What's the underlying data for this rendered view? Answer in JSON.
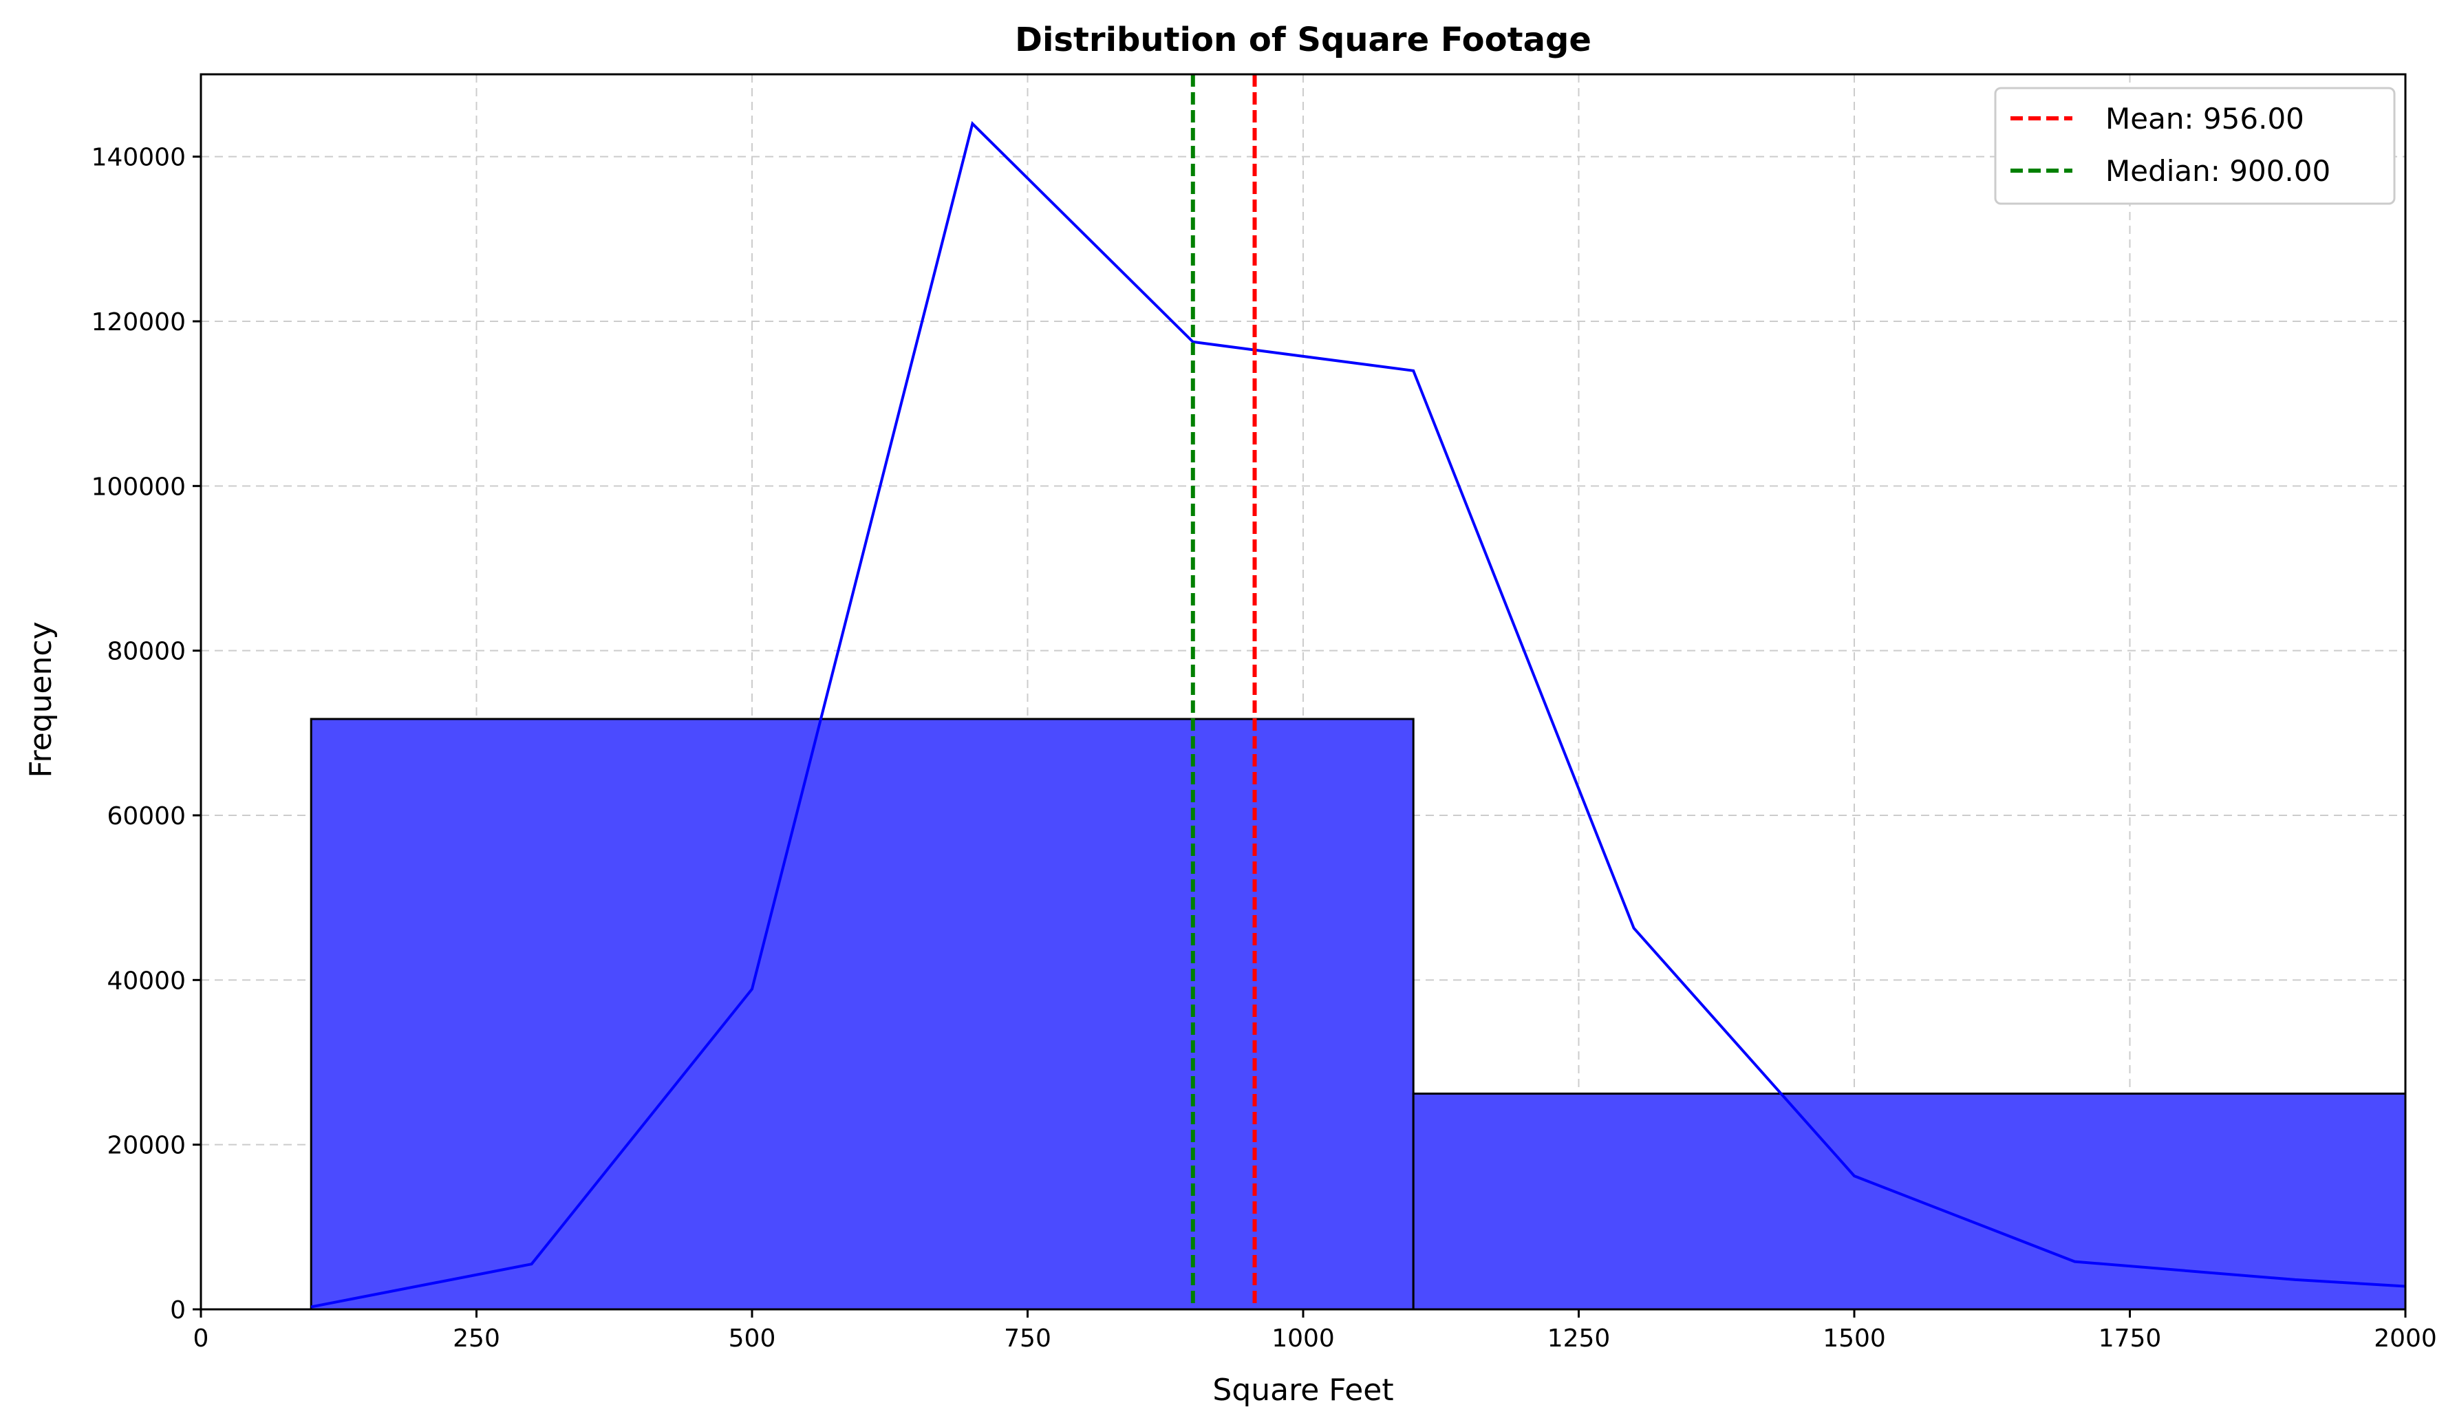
{
  "chart_data": {
    "type": "histogram",
    "title": "Distribution of Square Footage",
    "xlabel": "Square Feet",
    "ylabel": "Frequency",
    "xlim": [
      0,
      2000
    ],
    "ylim": [
      0,
      150000
    ],
    "xticks": [
      0,
      250,
      500,
      750,
      1000,
      1250,
      1500,
      1750,
      2000
    ],
    "yticks": [
      0,
      20000,
      40000,
      60000,
      80000,
      100000,
      120000,
      140000
    ],
    "grid": true,
    "legend_position": "top-right",
    "bins": [
      {
        "x0": 100,
        "x1": 1100,
        "count": 71700
      },
      {
        "x0": 1100,
        "x1": 2000,
        "count": 26200
      }
    ],
    "bar_color": "#4b4bff",
    "bar_edge_color": "#000000",
    "density_line": {
      "color": "#0000ff",
      "x": [
        100,
        300,
        500,
        700,
        900,
        1100,
        1300,
        1500,
        1700,
        1900,
        2000
      ],
      "y": [
        300,
        5500,
        38900,
        144000,
        117500,
        114000,
        46300,
        16200,
        5800,
        3600,
        2800
      ]
    },
    "reference_lines": [
      {
        "label": "Mean: 956.00",
        "x": 956,
        "color": "#ff0000",
        "style": "dashed"
      },
      {
        "label": "Median: 900.00",
        "x": 900,
        "color": "#008000",
        "style": "dashed"
      }
    ]
  }
}
